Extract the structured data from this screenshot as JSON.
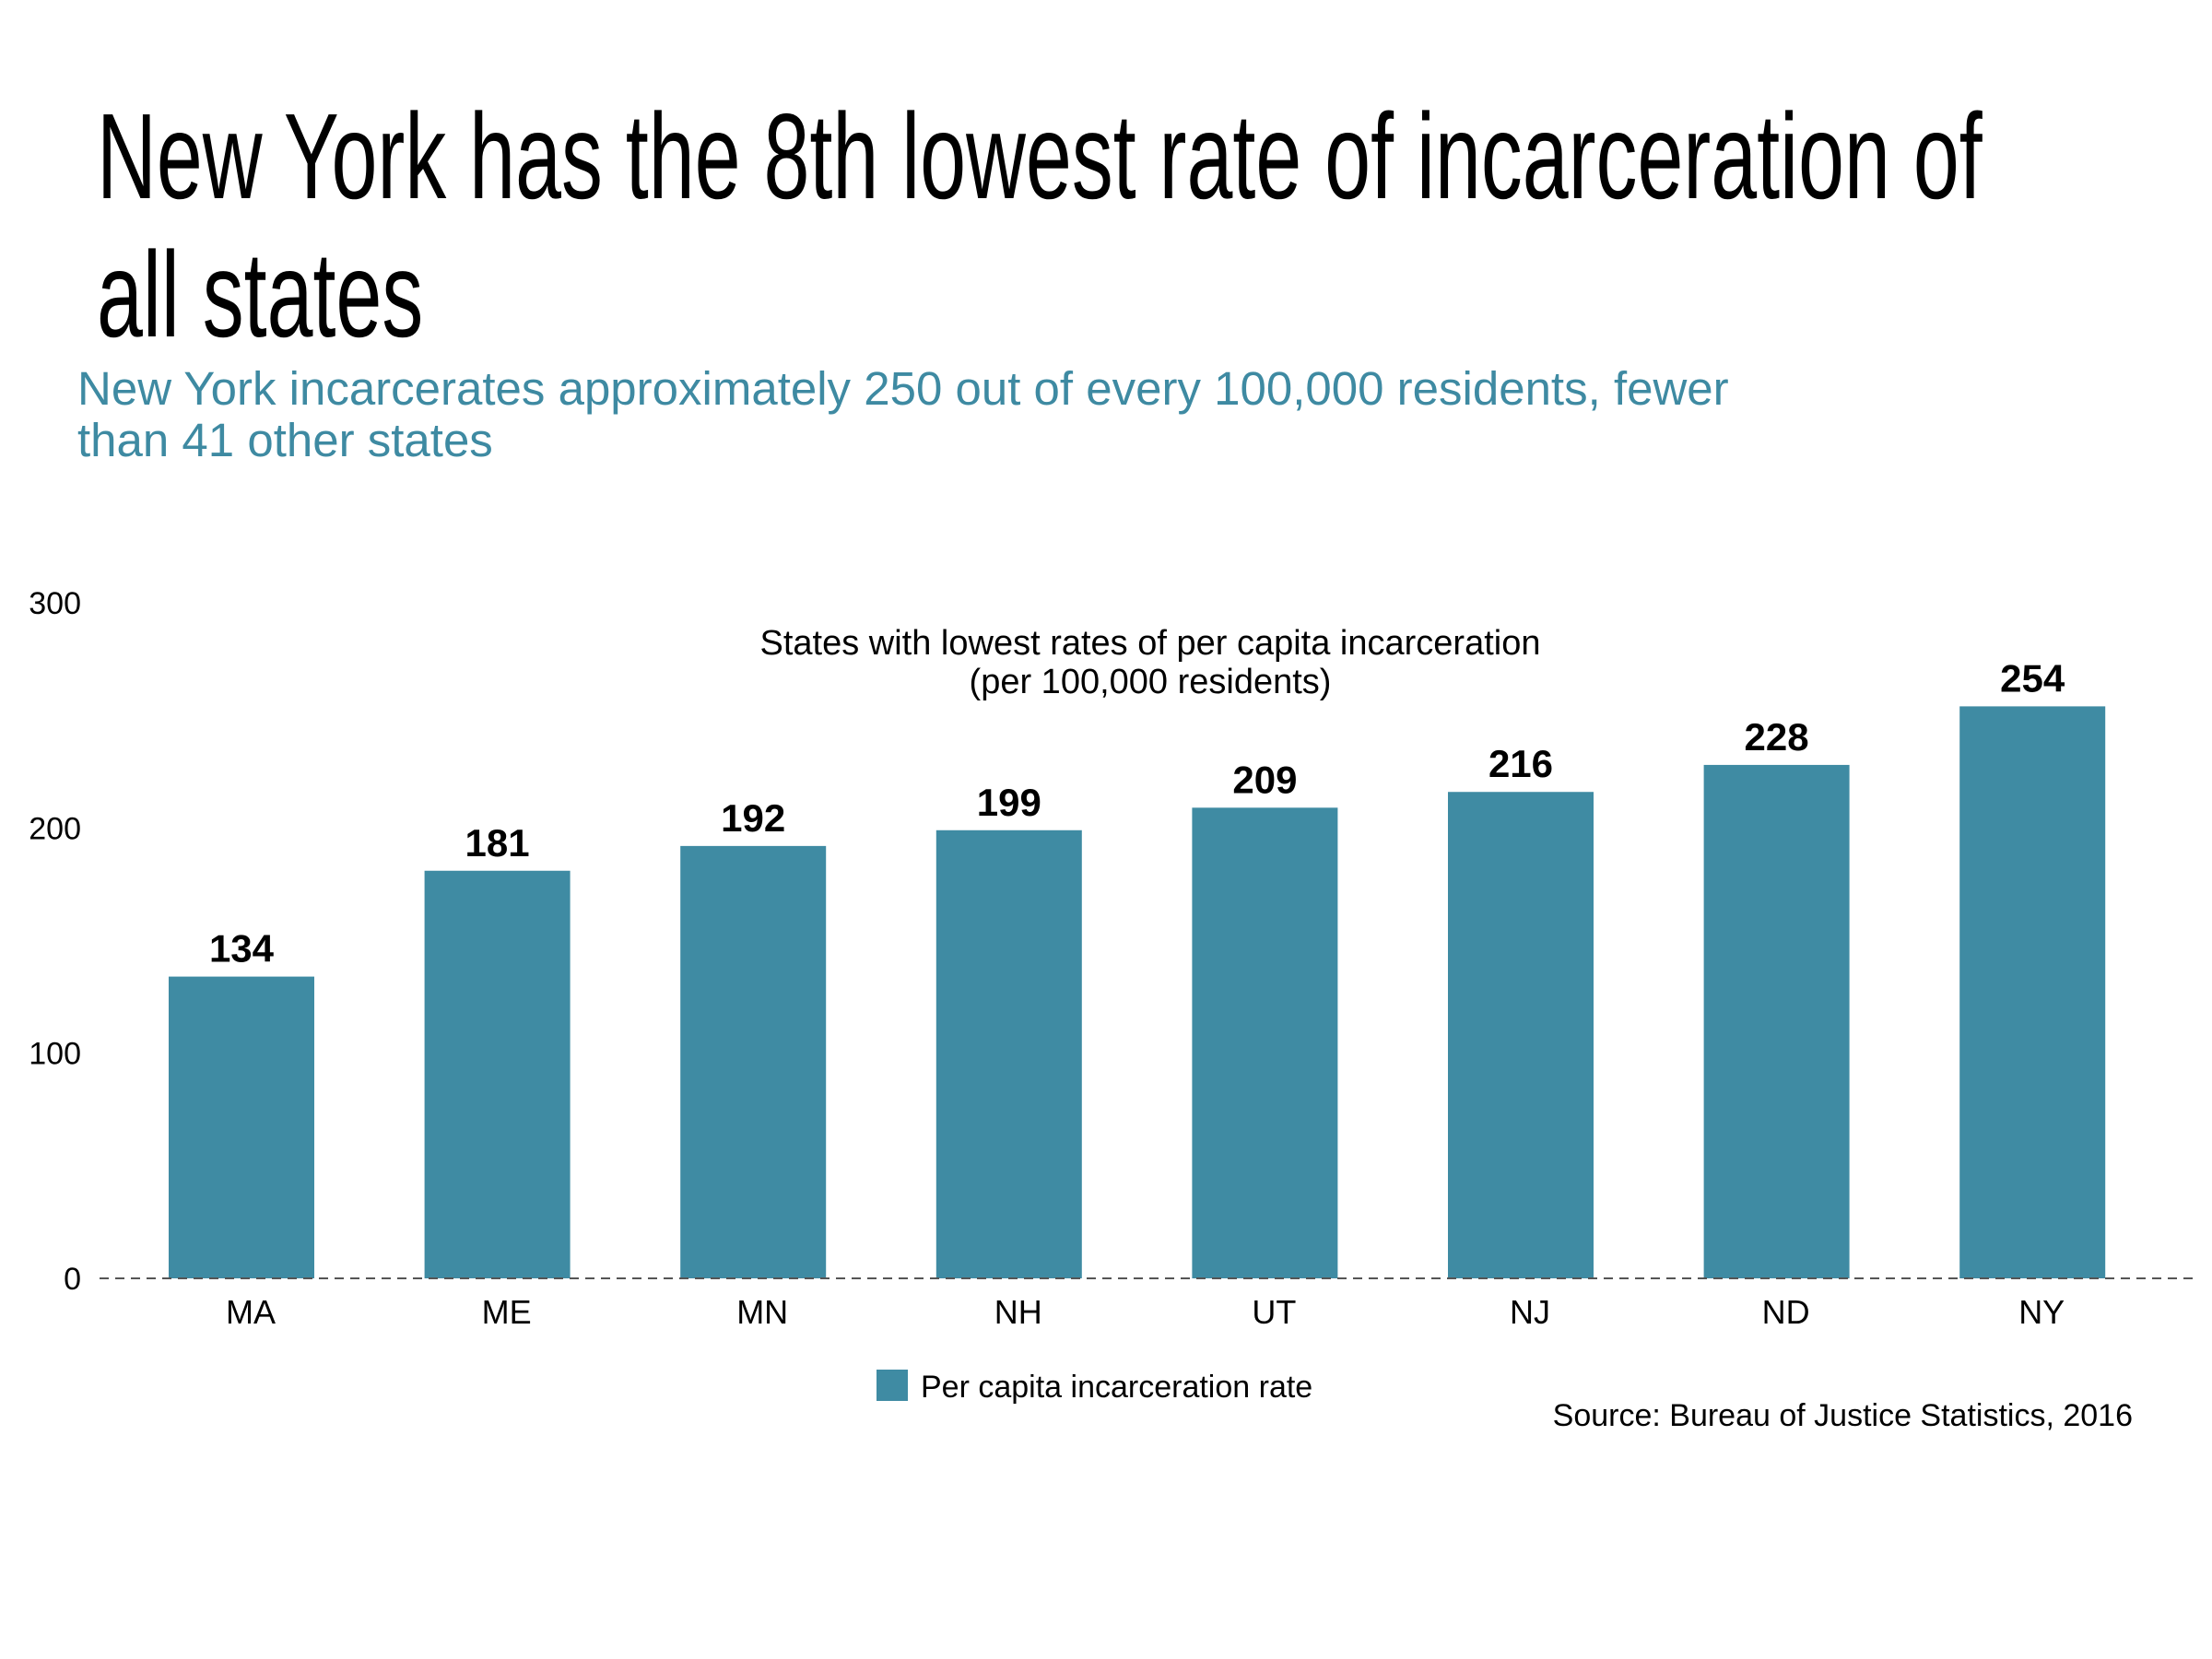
{
  "headline_lines": [
    "New York has the 8th lowest rate of incarceration of",
    "all states"
  ],
  "subtitle_lines": [
    "New York incarcerates approximately 250 out of every 100,000 residents, fewer",
    "than 41 other states"
  ],
  "source": "Source: Bureau of Justice Statistics, 2016",
  "colors": {
    "bar": "#3f8ba3",
    "subtitle": "#3e8aa2",
    "baseline": "#555555"
  },
  "chart_data": {
    "type": "bar",
    "title_lines": [
      "States with lowest rates of per capita incarceration",
      "(per 100,000 residents)"
    ],
    "categories": [
      "MA",
      "ME",
      "MN",
      "NH",
      "UT",
      "NJ",
      "ND",
      "NY"
    ],
    "series": [
      {
        "name": "Per capita incarceration rate",
        "values": [
          134,
          181,
          192,
          199,
          209,
          216,
          228,
          254
        ]
      }
    ],
    "y_ticks": [
      0,
      100,
      200,
      300
    ],
    "ylim": [
      0,
      300
    ],
    "grid": false,
    "baseline": "dashed",
    "data_labels": true,
    "legend_position": "bottom-center"
  }
}
